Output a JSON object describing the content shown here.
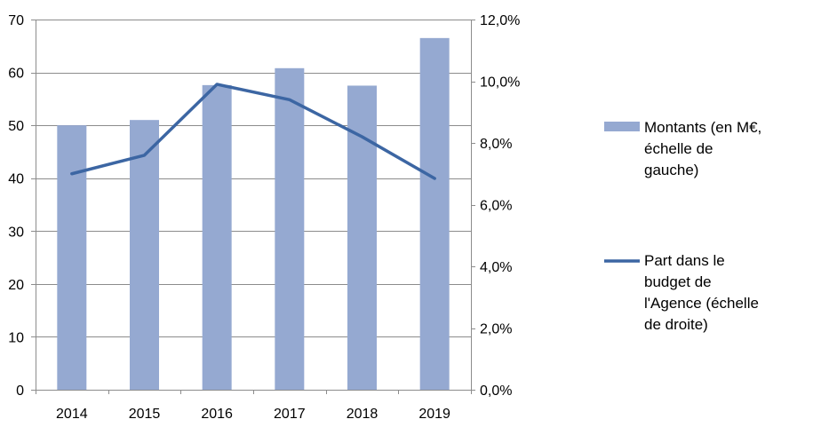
{
  "chart_data": {
    "type": "bar",
    "categories": [
      "2014",
      "2015",
      "2016",
      "2017",
      "2018",
      "2019"
    ],
    "series": [
      {
        "name": "Montants (en M€, échelle de gauche)",
        "type": "bar",
        "axis": "left",
        "values": [
          50,
          51,
          57.6,
          60.8,
          57.5,
          66.5
        ]
      },
      {
        "name": "Part dans le budget de l'Agence (échelle de droite)",
        "type": "line",
        "axis": "right",
        "values": [
          7.0,
          7.6,
          9.9,
          9.4,
          8.2,
          6.85
        ]
      }
    ],
    "left_axis": {
      "ylim": [
        0,
        70
      ],
      "ticks": [
        "0",
        "10",
        "20",
        "30",
        "40",
        "50",
        "60",
        "70"
      ]
    },
    "right_axis": {
      "ylim": [
        0,
        12
      ],
      "ticks": [
        "0,0%",
        "2,0%",
        "4,0%",
        "6,0%",
        "8,0%",
        "10,0%",
        "12,0%"
      ]
    },
    "grid": true,
    "legend_position": "right",
    "legend": [
      {
        "lines": [
          "Montants (en M€,",
          "échelle de",
          "gauche)"
        ]
      },
      {
        "lines": [
          "Part dans le",
          "budget de",
          "l'Agence (échelle",
          "de droite)"
        ]
      }
    ],
    "colors": {
      "bar": "#95A9D1",
      "line": "#3C66A3",
      "grid": "#8C8C8C",
      "axis": "#8C8C8C"
    }
  }
}
